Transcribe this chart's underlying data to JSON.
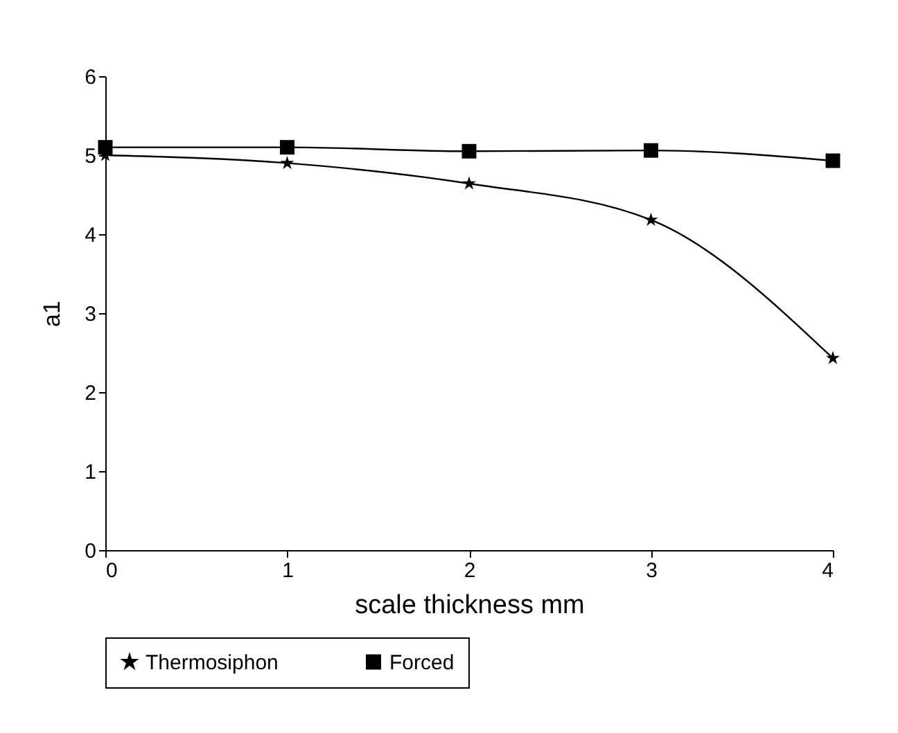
{
  "chart_data": {
    "type": "line",
    "xlabel": "scale thickness mm",
    "ylabel": "a1",
    "x": [
      0,
      1,
      2,
      3,
      4
    ],
    "series": [
      {
        "name": "Thermosiphon",
        "color": "#000000",
        "marker": "star",
        "values": [
          5.0,
          4.9,
          4.64,
          4.18,
          2.43
        ]
      },
      {
        "name": "Forced",
        "color": "#000000",
        "marker": "square",
        "values": [
          5.1,
          5.1,
          5.05,
          5.06,
          4.93
        ]
      }
    ],
    "xlim": [
      0,
      4
    ],
    "xticks": [
      0,
      1,
      2,
      3,
      4
    ],
    "ylim": [
      0,
      6
    ],
    "yticks": [
      0,
      1,
      2,
      3,
      4,
      5,
      6
    ],
    "grid": false,
    "legend": "bottom",
    "line_style": "solid"
  }
}
